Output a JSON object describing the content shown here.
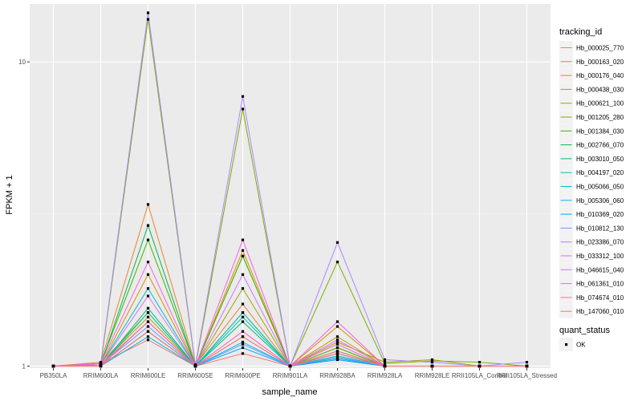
{
  "chart_data": {
    "type": "line",
    "xlabel": "sample_name",
    "ylabel": "FPKM + 1",
    "y_scale": "log10",
    "ylim": [
      0.985,
      15.5
    ],
    "y_ticks": [
      {
        "value": 1,
        "label": "1"
      },
      {
        "value": 10,
        "label": "10"
      }
    ],
    "categories": [
      "PB350LA",
      "RRIM600LA",
      "RRIM600LE",
      "RRIM600SE",
      "RRIM600PE",
      "RRIM901LA",
      "RRIM928BA",
      "RRIM928LA",
      "RRIM928LE",
      "RRII105LA_Control",
      "RRII105LA_Stressed"
    ],
    "legend_title": "tracking_id",
    "legend_position": "right",
    "grid": true,
    "series": [
      {
        "name": "Hb_000025_770",
        "color": "#F8766D",
        "values": [
          1.0,
          1.02,
          1.22,
          1.0,
          1.1,
          1.0,
          1.05,
          1.0,
          1.0,
          1.0,
          1.0
        ]
      },
      {
        "name": "Hb_000163_020",
        "color": "#EA8331",
        "values": [
          1.0,
          1.03,
          3.4,
          1.01,
          1.6,
          1.0,
          1.15,
          1.0,
          1.0,
          1.0,
          1.0
        ]
      },
      {
        "name": "Hb_000176_040",
        "color": "#D89000",
        "values": [
          1.0,
          1.01,
          2.0,
          1.0,
          2.4,
          1.0,
          1.35,
          1.0,
          1.0,
          1.0,
          1.0
        ]
      },
      {
        "name": "Hb_000438_030",
        "color": "#C09B00",
        "values": [
          1.0,
          1.02,
          1.5,
          1.0,
          2.3,
          1.0,
          1.25,
          1.0,
          1.0,
          1.0,
          1.0
        ]
      },
      {
        "name": "Hb_000621_100",
        "color": "#A3A500",
        "values": [
          1.0,
          1.01,
          1.45,
          1.0,
          1.8,
          1.0,
          1.2,
          1.03,
          1.05,
          1.0,
          1.0
        ]
      },
      {
        "name": "Hb_001205_280",
        "color": "#7CAE00",
        "values": [
          1.0,
          1.01,
          13.8,
          1.0,
          7.0,
          1.0,
          2.2,
          1.02,
          1.04,
          1.03,
          1.0
        ]
      },
      {
        "name": "Hb_001384_030",
        "color": "#39B600",
        "values": [
          1.0,
          1.02,
          2.6,
          1.0,
          2.3,
          1.0,
          1.15,
          1.0,
          1.0,
          1.0,
          1.0
        ]
      },
      {
        "name": "Hb_002766_070",
        "color": "#00BB4E",
        "values": [
          1.0,
          1.01,
          2.9,
          1.0,
          1.5,
          1.0,
          1.12,
          1.0,
          1.0,
          1.0,
          1.0
        ]
      },
      {
        "name": "Hb_003010_050",
        "color": "#00BF7D",
        "values": [
          1.0,
          1.0,
          1.55,
          1.0,
          1.4,
          1.0,
          1.1,
          1.0,
          1.0,
          1.0,
          1.0
        ]
      },
      {
        "name": "Hb_004197_020",
        "color": "#00C1A3",
        "values": [
          1.0,
          1.0,
          1.5,
          1.0,
          1.45,
          1.0,
          1.08,
          1.0,
          1.0,
          1.0,
          1.0
        ]
      },
      {
        "name": "Hb_005066_050",
        "color": "#00BFC4",
        "values": [
          1.0,
          1.01,
          1.8,
          1.0,
          1.5,
          1.0,
          1.1,
          1.0,
          1.0,
          1.0,
          1.0
        ]
      },
      {
        "name": "Hb_005306_060",
        "color": "#00B8E7",
        "values": [
          1.0,
          1.0,
          1.25,
          1.0,
          1.2,
          1.0,
          1.06,
          1.0,
          1.0,
          1.0,
          1.0
        ]
      },
      {
        "name": "Hb_010369_020",
        "color": "#00A9FF",
        "values": [
          1.0,
          1.0,
          1.3,
          1.0,
          1.15,
          1.0,
          1.05,
          1.0,
          1.0,
          1.0,
          1.0
        ]
      },
      {
        "name": "Hb_010812_130",
        "color": "#619CFF",
        "values": [
          1.0,
          1.01,
          1.35,
          1.0,
          1.18,
          1.0,
          1.07,
          1.0,
          1.0,
          1.0,
          1.0
        ]
      },
      {
        "name": "Hb_023386_070",
        "color": "#AE87FF",
        "values": [
          1.0,
          1.02,
          14.5,
          1.01,
          7.7,
          1.0,
          2.55,
          1.05,
          1.03,
          1.0,
          1.03
        ]
      },
      {
        "name": "Hb_033312_100",
        "color": "#DB72FB",
        "values": [
          1.0,
          1.01,
          1.7,
          1.0,
          2.0,
          1.0,
          1.22,
          1.0,
          1.0,
          1.0,
          1.0
        ]
      },
      {
        "name": "Hb_046615_040",
        "color": "#F564E3",
        "values": [
          1.0,
          1.02,
          2.2,
          1.0,
          2.6,
          1.0,
          1.4,
          1.0,
          1.0,
          1.0,
          1.0
        ]
      },
      {
        "name": "Hb_061361_010",
        "color": "#FF61C3",
        "values": [
          1.0,
          1.01,
          1.4,
          1.0,
          1.3,
          1.0,
          1.18,
          1.0,
          1.0,
          1.0,
          1.0
        ]
      },
      {
        "name": "Hb_074674_010",
        "color": "#FF6C91",
        "values": [
          1.0,
          1.0,
          1.4,
          1.0,
          1.25,
          1.0,
          1.1,
          1.0,
          1.0,
          1.0,
          1.0
        ]
      },
      {
        "name": "Hb_147060_010",
        "color": "#F8766D",
        "values": [
          1.0,
          1.0,
          1.3,
          1.0,
          1.25,
          1.0,
          1.12,
          1.0,
          1.0,
          1.0,
          1.0
        ]
      }
    ],
    "shape_legend": {
      "title": "quant_status",
      "items": [
        {
          "label": "OK",
          "shape": "square",
          "color": "#000000"
        }
      ]
    }
  }
}
